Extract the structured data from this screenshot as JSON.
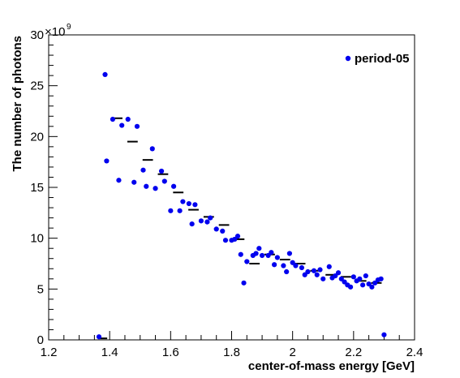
{
  "chart_data": {
    "type": "scatter",
    "xlabel": "center-of-mass energy [GeV]",
    "ylabel": "The number of photons",
    "exponent_prefix": "×10",
    "exponent": "9",
    "xlim": [
      1.2,
      2.4
    ],
    "ylim": [
      0,
      30
    ],
    "x_ticks": [
      "1.2",
      "1.4",
      "1.6",
      "1.8",
      "2",
      "2.2",
      "2.4"
    ],
    "y_ticks": [
      "0",
      "5",
      "10",
      "15",
      "20",
      "25",
      "30"
    ],
    "grid": false,
    "legend_position": "top-right",
    "series": [
      {
        "name": "period-05",
        "color": "#0000ee",
        "marker": "circle",
        "points": [
          [
            1.365,
            0.3
          ],
          [
            1.385,
            26.1
          ],
          [
            1.39,
            17.6
          ],
          [
            1.41,
            21.7
          ],
          [
            1.43,
            15.7
          ],
          [
            1.44,
            21.1
          ],
          [
            1.46,
            21.7
          ],
          [
            1.48,
            15.5
          ],
          [
            1.49,
            21.0
          ],
          [
            1.51,
            16.7
          ],
          [
            1.52,
            15.1
          ],
          [
            1.54,
            18.8
          ],
          [
            1.55,
            14.9
          ],
          [
            1.57,
            16.6
          ],
          [
            1.58,
            15.6
          ],
          [
            1.6,
            12.7
          ],
          [
            1.61,
            15.1
          ],
          [
            1.63,
            12.7
          ],
          [
            1.64,
            13.6
          ],
          [
            1.66,
            13.4
          ],
          [
            1.67,
            11.4
          ],
          [
            1.68,
            13.3
          ],
          [
            1.7,
            11.7
          ],
          [
            1.72,
            11.6
          ],
          [
            1.73,
            12.0
          ],
          [
            1.75,
            10.9
          ],
          [
            1.77,
            10.7
          ],
          [
            1.78,
            9.8
          ],
          [
            1.8,
            9.8
          ],
          [
            1.81,
            9.9
          ],
          [
            1.82,
            10.2
          ],
          [
            1.83,
            8.4
          ],
          [
            1.84,
            5.6
          ],
          [
            1.85,
            7.7
          ],
          [
            1.87,
            8.3
          ],
          [
            1.88,
            8.5
          ],
          [
            1.89,
            9.0
          ],
          [
            1.9,
            8.3
          ],
          [
            1.92,
            8.3
          ],
          [
            1.93,
            8.6
          ],
          [
            1.94,
            7.4
          ],
          [
            1.95,
            8.1
          ],
          [
            1.97,
            7.3
          ],
          [
            1.98,
            6.7
          ],
          [
            1.99,
            8.5
          ],
          [
            2.0,
            7.6
          ],
          [
            2.01,
            7.3
          ],
          [
            2.03,
            7.1
          ],
          [
            2.04,
            6.4
          ],
          [
            2.05,
            6.7
          ],
          [
            2.07,
            6.8
          ],
          [
            2.08,
            6.4
          ],
          [
            2.09,
            6.9
          ],
          [
            2.1,
            6.0
          ],
          [
            2.12,
            7.2
          ],
          [
            2.13,
            6.1
          ],
          [
            2.14,
            6.3
          ],
          [
            2.15,
            6.6
          ],
          [
            2.16,
            6.0
          ],
          [
            2.17,
            5.7
          ],
          [
            2.18,
            5.4
          ],
          [
            2.19,
            5.2
          ],
          [
            2.2,
            6.2
          ],
          [
            2.21,
            5.8
          ],
          [
            2.22,
            6.0
          ],
          [
            2.23,
            5.4
          ],
          [
            2.24,
            6.3
          ],
          [
            2.25,
            5.5
          ],
          [
            2.26,
            5.2
          ],
          [
            2.27,
            5.6
          ],
          [
            2.28,
            5.9
          ],
          [
            2.29,
            6.0
          ],
          [
            2.3,
            0.5
          ]
        ]
      },
      {
        "type": "horizontal-bins",
        "color": "#000000",
        "segments": [
          [
            1.36,
            1.4,
            0.15
          ],
          [
            1.4,
            1.45,
            21.8
          ],
          [
            1.45,
            1.5,
            19.5
          ],
          [
            1.5,
            1.55,
            17.7
          ],
          [
            1.55,
            1.6,
            16.3
          ],
          [
            1.6,
            1.65,
            14.5
          ],
          [
            1.65,
            1.7,
            12.8
          ],
          [
            1.7,
            1.75,
            12.1
          ],
          [
            1.75,
            1.8,
            11.3
          ],
          [
            1.8,
            1.85,
            9.9
          ],
          [
            1.85,
            1.9,
            7.5
          ],
          [
            1.9,
            1.95,
            8.4
          ],
          [
            1.95,
            2.0,
            7.9
          ],
          [
            2.0,
            2.05,
            7.5
          ],
          [
            2.05,
            2.1,
            6.8
          ],
          [
            2.1,
            2.15,
            6.4
          ],
          [
            2.15,
            2.2,
            6.2
          ],
          [
            2.2,
            2.25,
            5.8
          ],
          [
            2.25,
            2.3,
            5.6
          ]
        ]
      }
    ]
  }
}
